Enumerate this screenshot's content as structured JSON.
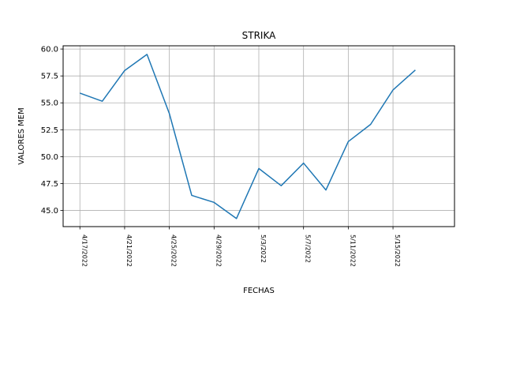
{
  "chart_data": {
    "type": "line",
    "title": "STRIKA",
    "xlabel": "FECHAS",
    "ylabel": "VALORES MEM",
    "x": [
      "4/17/2022",
      "4/19/2022",
      "4/21/2022",
      "4/23/2022",
      "4/25/2022",
      "4/27/2022",
      "4/29/2022",
      "5/1/2022",
      "5/3/2022",
      "5/5/2022",
      "5/7/2022",
      "5/9/2022",
      "5/11/2022",
      "5/13/2022",
      "5/15/2022",
      "5/17/2022"
    ],
    "series": [
      {
        "values": [
          55.9,
          55.15,
          58.0,
          59.5,
          54.0,
          46.4,
          45.75,
          44.25,
          48.9,
          47.3,
          49.4,
          46.9,
          51.4,
          53.0,
          56.2,
          58.05
        ]
      }
    ],
    "xticks": [
      "4/17/2022",
      "4/21/2022",
      "4/25/2022",
      "4/29/2022",
      "5/3/2022",
      "5/7/2022",
      "5/11/2022",
      "5/15/2022"
    ],
    "yticks": [
      "45.0",
      "47.5",
      "50.0",
      "52.5",
      "55.0",
      "57.5",
      "60.0"
    ],
    "ylim": [
      43.5,
      60.3
    ],
    "xlim_days": [
      -1.5,
      33.5
    ],
    "grid": true,
    "colors": {
      "line": "#1f77b4",
      "grid": "#b0b0b0",
      "axis": "#000000"
    }
  }
}
